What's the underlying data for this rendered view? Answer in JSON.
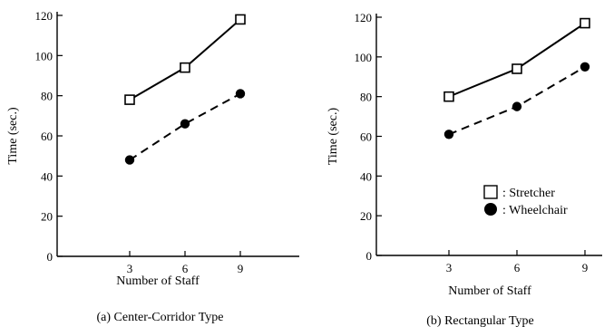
{
  "chart_data": [
    {
      "type": "line",
      "caption": "(a) Center-Corridor Type",
      "xlabel": "Number of Staff",
      "ylabel": "Time (sec.)",
      "x": [
        3,
        6,
        9
      ],
      "xticks": [
        "3",
        "6",
        "9"
      ],
      "ylim": [
        0,
        120
      ],
      "yticks": [
        "0",
        "20",
        "40",
        "60",
        "80",
        "100",
        "120"
      ],
      "grid": false,
      "series": [
        {
          "name": "Stretcher",
          "marker": "open-square",
          "line": "solid",
          "values": [
            78,
            94,
            118
          ]
        },
        {
          "name": "Wheelchair",
          "marker": "filled-circle",
          "line": "dashed",
          "values": [
            48,
            66,
            81
          ]
        }
      ]
    },
    {
      "type": "line",
      "caption": "(b) Rectangular Type",
      "xlabel": "Number of Staff",
      "ylabel": "Time (sec.)",
      "x": [
        3,
        6,
        9
      ],
      "xticks": [
        "3",
        "6",
        "9"
      ],
      "ylim": [
        0,
        120
      ],
      "yticks": [
        "0",
        "20",
        "40",
        "60",
        "80",
        "100",
        "120"
      ],
      "grid": false,
      "legend": {
        "placement": "right",
        "items": [
          {
            "marker": "open-square",
            "label": ": Stretcher"
          },
          {
            "marker": "filled-circle",
            "label": ": Wheelchair"
          }
        ]
      },
      "series": [
        {
          "name": "Stretcher",
          "marker": "open-square",
          "line": "solid",
          "values": [
            80,
            94,
            117
          ]
        },
        {
          "name": "Wheelchair",
          "marker": "filled-circle",
          "line": "dashed",
          "values": [
            61,
            75,
            95
          ]
        }
      ]
    }
  ]
}
